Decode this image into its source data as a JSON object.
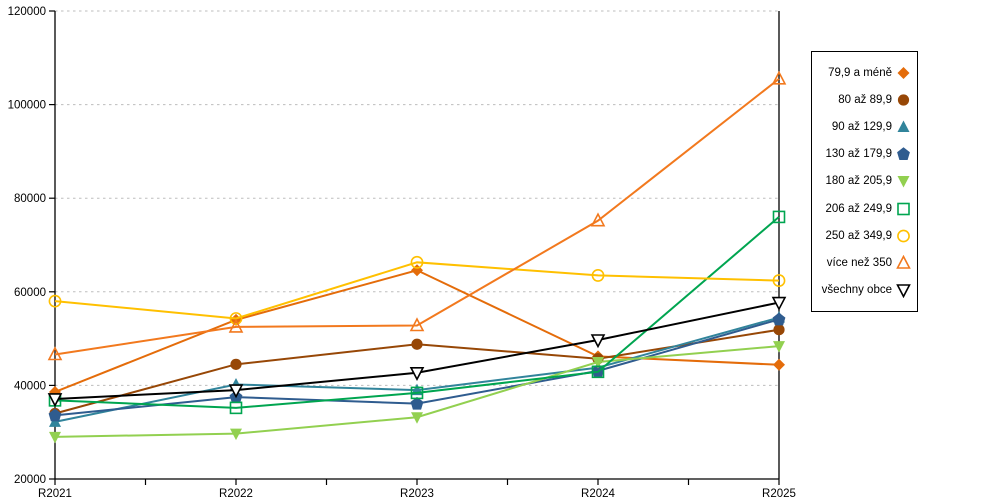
{
  "chart_data": {
    "type": "line",
    "categories": [
      "R2021",
      "R2022",
      "R2023",
      "R2024",
      "R2025"
    ],
    "series": [
      {
        "name": "79,9 a méně",
        "marker": "diamond",
        "filled": true,
        "color": "#E46C0A",
        "values": [
          38600,
          54000,
          64600,
          46200,
          44400
        ]
      },
      {
        "name": "80 až 89,9",
        "marker": "circle",
        "filled": true,
        "color": "#974706",
        "values": [
          34000,
          44500,
          48800,
          45700,
          51900
        ]
      },
      {
        "name": "90 až 129,9",
        "marker": "triangle-up",
        "filled": true,
        "color": "#31849B",
        "values": [
          32200,
          40200,
          39000,
          43800,
          54500
        ]
      },
      {
        "name": "130 až 179,9",
        "marker": "pentagon",
        "filled": true,
        "color": "#2F5C8F",
        "values": [
          33600,
          37500,
          36100,
          43100,
          54100
        ]
      },
      {
        "name": "180 až 205,9",
        "marker": "triangle-down",
        "filled": true,
        "color": "#92D050",
        "values": [
          29000,
          29700,
          33200,
          45000,
          48400
        ]
      },
      {
        "name": "206 až 249,9",
        "marker": "square",
        "filled": false,
        "color": "#00A550",
        "values": [
          36800,
          35200,
          38400,
          42900,
          76000
        ]
      },
      {
        "name": "250 až 349,9",
        "marker": "circle",
        "filled": false,
        "color": "#FFC000",
        "values": [
          58000,
          54300,
          66300,
          63500,
          62400
        ]
      },
      {
        "name": "více než 350",
        "marker": "triangle-up",
        "filled": false,
        "color": "#F2791E",
        "values": [
          46600,
          52500,
          52800,
          75200,
          105500
        ]
      },
      {
        "name": "všechny obce",
        "marker": "triangle-down",
        "filled": false,
        "color": "#000000",
        "values": [
          37100,
          39000,
          42700,
          49700,
          57700
        ]
      }
    ],
    "ylim": [
      20000,
      120000
    ],
    "ytick_step": 20000,
    "ytick_labels": [
      "20000",
      "40000",
      "60000",
      "80000",
      "100000",
      "120000"
    ],
    "xlabel": "",
    "ylabel": "",
    "title": "",
    "grid": "horizontal-dashed",
    "grid_color": "#BDBDBD",
    "axis_color": "#000000",
    "legend_position": "right"
  }
}
